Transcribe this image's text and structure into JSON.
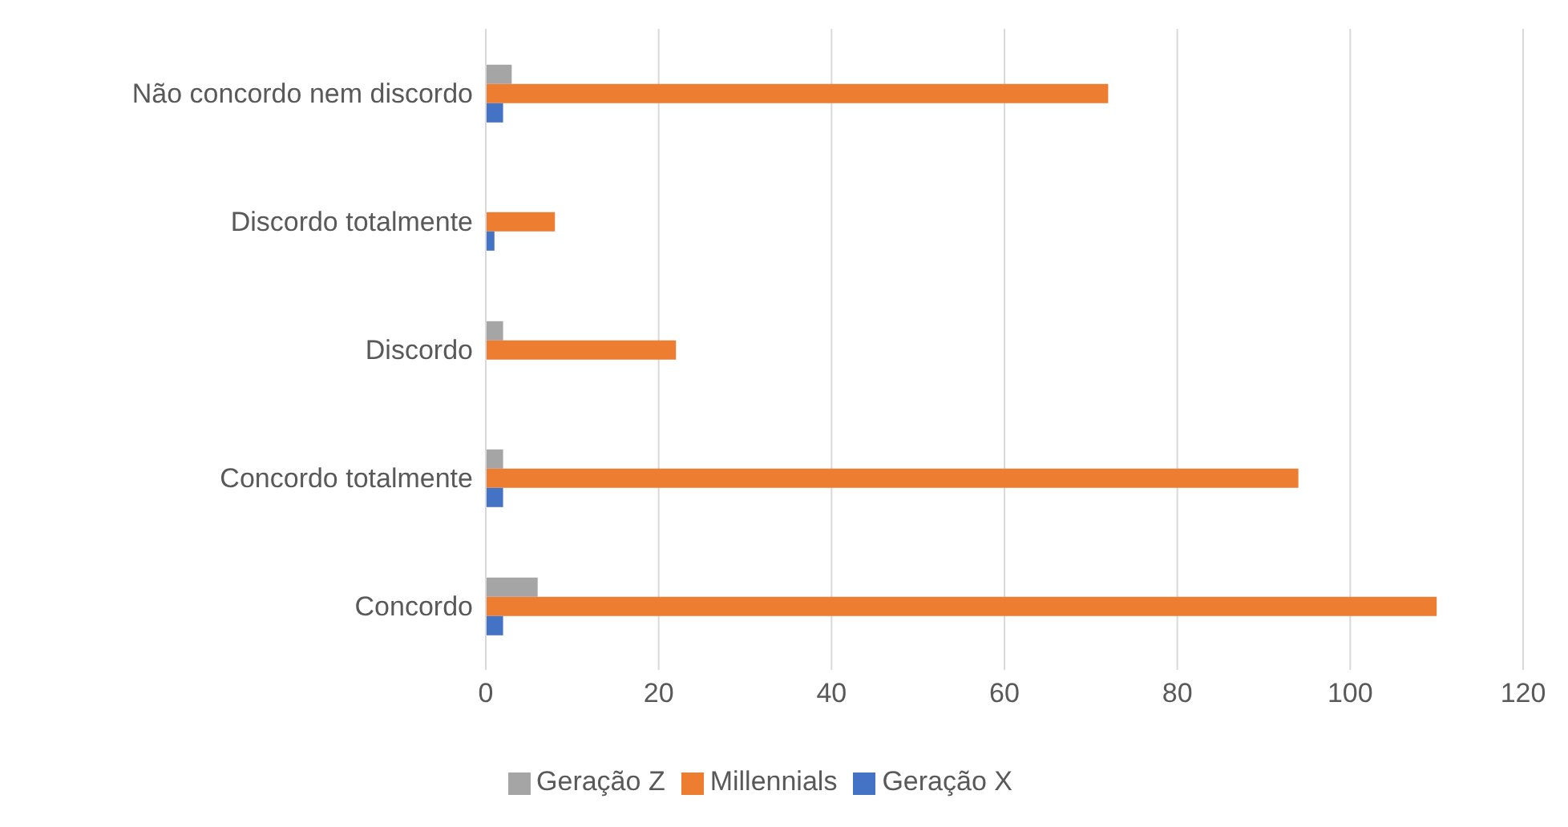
{
  "chart_data": {
    "type": "bar",
    "orientation": "horizontal",
    "categories": [
      "Não concordo nem discordo",
      "Discordo totalmente",
      "Discordo",
      "Concordo totalmente",
      "Concordo"
    ],
    "series": [
      {
        "name": "Geração Z",
        "color": "#a5a5a5",
        "values": [
          3,
          0,
          2,
          2,
          6
        ]
      },
      {
        "name": "Millennials",
        "color": "#ed7d31",
        "values": [
          72,
          8,
          22,
          94,
          110
        ]
      },
      {
        "name": "Geração X",
        "color": "#4472c4",
        "values": [
          2,
          1,
          0,
          2,
          2
        ]
      }
    ],
    "xlim": [
      0,
      120
    ],
    "xticks": [
      0,
      20,
      40,
      60,
      80,
      100,
      120
    ],
    "grid": "x",
    "legend": "bottom"
  }
}
